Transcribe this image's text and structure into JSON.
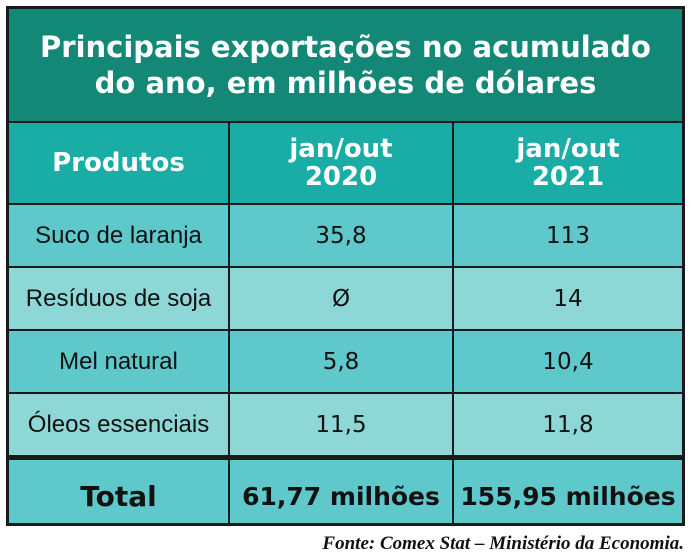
{
  "title": {
    "line1": "Principais exportações no acumulado",
    "line2": "do ano, em milhões de dólares"
  },
  "header": {
    "col1": "Produtos",
    "col2_line1": "jan/out",
    "col2_line2": "2020",
    "col3_line1": "jan/out",
    "col3_line2": "2021"
  },
  "rows": [
    {
      "product": "Suco de laranja",
      "v2020": "35,8",
      "v2021": "113"
    },
    {
      "product": "Resíduos de soja",
      "v2020": "Ø",
      "v2021": "14"
    },
    {
      "product": "Mel natural",
      "v2020": "5,8",
      "v2021": "10,4"
    },
    {
      "product": "Óleos essenciais",
      "v2020": "11,5",
      "v2021": "11,8"
    }
  ],
  "total": {
    "label": "Total",
    "v2020": "61,77 milhões",
    "v2021": "155,95 milhões"
  },
  "source": "Fonte: Comex Stat – Ministério da Economia.",
  "colors": {
    "title_bg": "#148877",
    "header_bg": "#19ada6",
    "row_dark": "#5fc8ca",
    "row_light": "#8dd7d6",
    "border": "#1a1a1a"
  }
}
